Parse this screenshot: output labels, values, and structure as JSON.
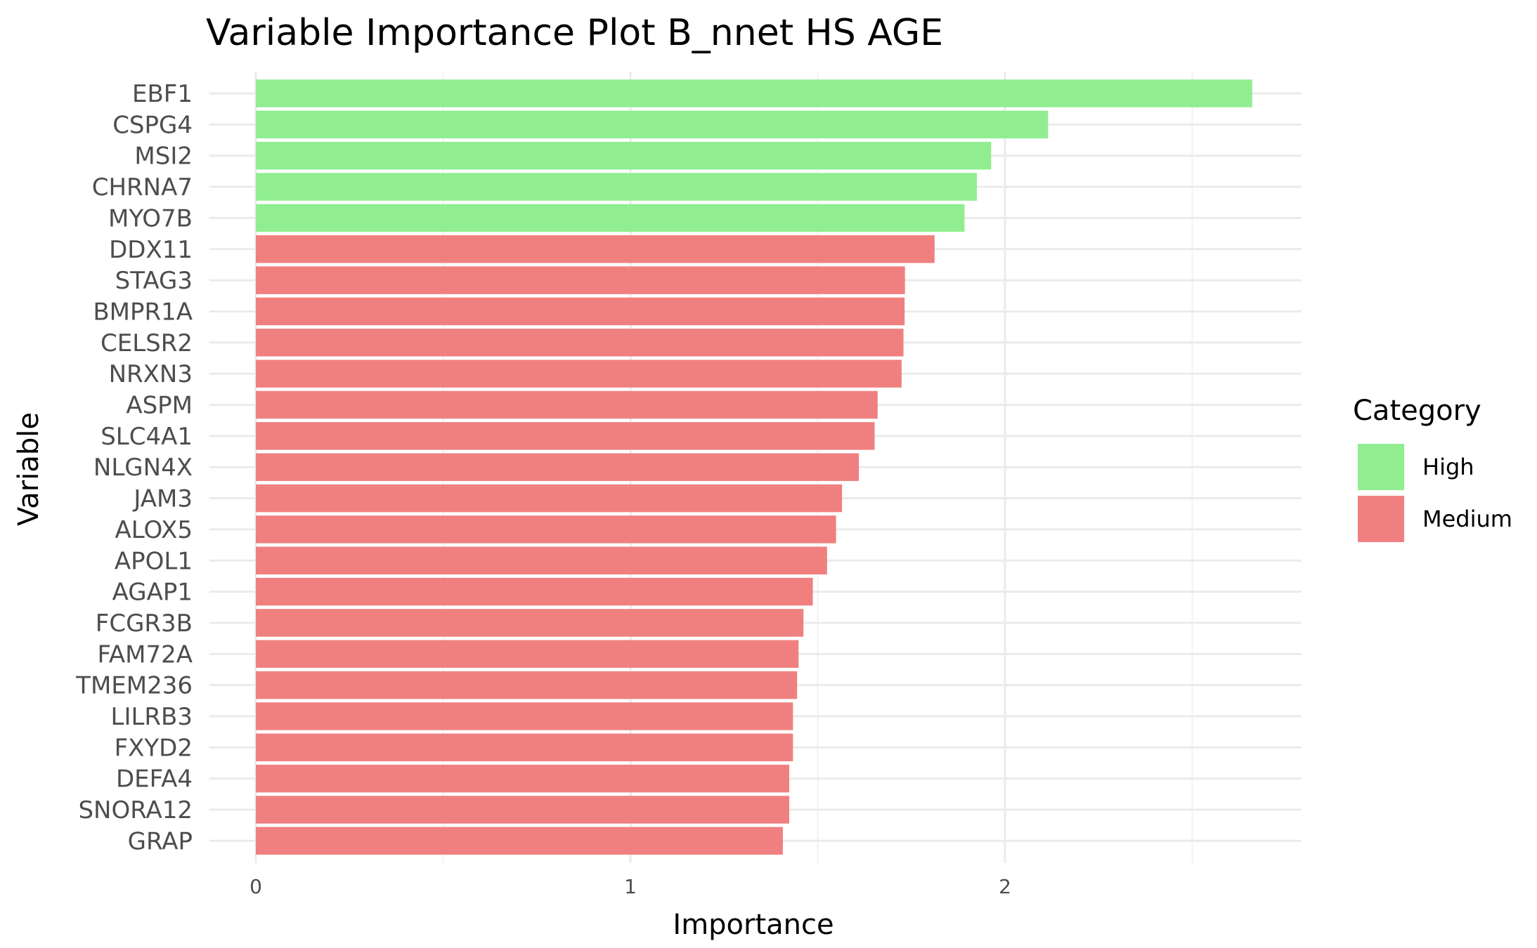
{
  "chart_data": {
    "type": "bar",
    "orientation": "horizontal",
    "title": "Variable Importance Plot B_nnet HS AGE",
    "xlabel": "Importance",
    "ylabel": "Variable",
    "xlim": [
      0,
      2.8
    ],
    "x_ticks": [
      0,
      1,
      2
    ],
    "grid": true,
    "legend_position": "right",
    "legend_title": "Category",
    "legend": [
      {
        "name": "High",
        "color": "#90EE90"
      },
      {
        "name": "Medium",
        "color": "#F08080"
      }
    ],
    "categories": [
      "EBF1",
      "CSPG4",
      "MSI2",
      "CHRNA7",
      "MYO7B",
      "DDX11",
      "STAG3",
      "BMPR1A",
      "CELSR2",
      "NRXN3",
      "ASPM",
      "SLC4A1",
      "NLGN4X",
      "JAM3",
      "ALOX5",
      "APOL1",
      "AGAP1",
      "FCGR3B",
      "FAM72A",
      "TMEM236",
      "LILRB3",
      "FXYD2",
      "DEFA4",
      "SNORA12",
      "GRAP"
    ],
    "values": [
      2.66,
      2.115,
      1.963,
      1.925,
      1.892,
      1.812,
      1.733,
      1.732,
      1.729,
      1.724,
      1.66,
      1.652,
      1.61,
      1.565,
      1.549,
      1.525,
      1.487,
      1.462,
      1.449,
      1.445,
      1.434,
      1.434,
      1.424,
      1.424,
      1.407
    ],
    "category_group": [
      "High",
      "High",
      "High",
      "High",
      "High",
      "Medium",
      "Medium",
      "Medium",
      "Medium",
      "Medium",
      "Medium",
      "Medium",
      "Medium",
      "Medium",
      "Medium",
      "Medium",
      "Medium",
      "Medium",
      "Medium",
      "Medium",
      "Medium",
      "Medium",
      "Medium",
      "Medium",
      "Medium"
    ]
  }
}
